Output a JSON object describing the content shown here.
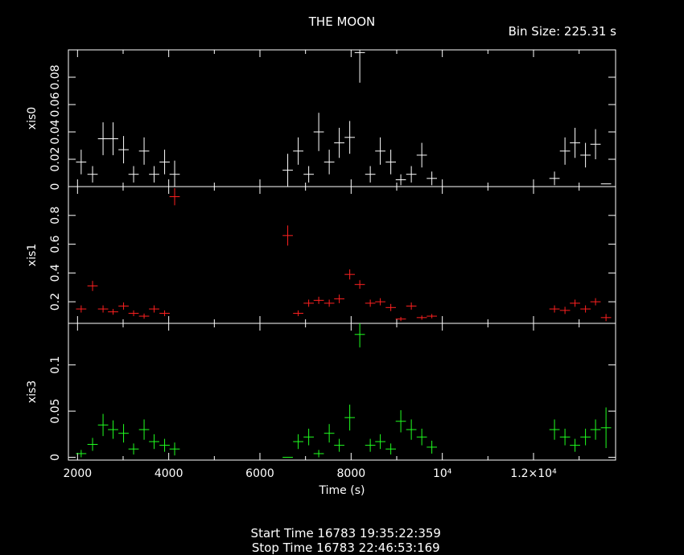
{
  "header": {
    "title": "THE MOON",
    "bin_size": "Bin Size: 225.31 s"
  },
  "footer": {
    "start": "Start Time 16783 19:35:22:359",
    "stop": "Stop Time 16783 22:46:53:169"
  },
  "chart_data": {
    "type": "scatter",
    "xlabel": "Time (s)",
    "xlim": [
      1800,
      13800
    ],
    "x_ticks": [
      {
        "value": 2000,
        "label": "2000"
      },
      {
        "value": 4000,
        "label": "4000"
      },
      {
        "value": 6000,
        "label": "6000"
      },
      {
        "value": 8000,
        "label": "8000"
      },
      {
        "value": 10000,
        "label": "10⁴"
      },
      {
        "value": 12000,
        "label": "1.2×10⁴"
      }
    ],
    "x_error": 112.65,
    "panels": [
      {
        "ylabel": "xis0",
        "color": "#ffffff",
        "ylim": [
          0,
          0.1
        ],
        "y_ticks": [
          {
            "value": 0,
            "label": "0"
          },
          {
            "value": 0.02,
            "label": "0.02"
          },
          {
            "value": 0.04,
            "label": "0.04"
          },
          {
            "value": 0.06,
            "label": "0.06"
          },
          {
            "value": 0.08,
            "label": "0.08"
          }
        ],
        "points": [
          [
            2080,
            0.018,
            0.009
          ],
          [
            2330,
            0.009,
            0.006
          ],
          [
            2560,
            0.035,
            0.012
          ],
          [
            2780,
            0.035,
            0.012
          ],
          [
            3010,
            0.027,
            0.01
          ],
          [
            3230,
            0.009,
            0.006
          ],
          [
            3460,
            0.026,
            0.01
          ],
          [
            3680,
            0.009,
            0.006
          ],
          [
            3910,
            0.018,
            0.009
          ],
          [
            4130,
            0.009,
            0.01
          ],
          [
            6610,
            0.012,
            0.012
          ],
          [
            6840,
            0.026,
            0.01
          ],
          [
            7070,
            0.009,
            0.006
          ],
          [
            7290,
            0.04,
            0.014
          ],
          [
            7520,
            0.018,
            0.009
          ],
          [
            7740,
            0.032,
            0.011
          ],
          [
            7970,
            0.036,
            0.012
          ],
          [
            8190,
            0.098,
            0.022
          ],
          [
            8420,
            0.009,
            0.006
          ],
          [
            8640,
            0.026,
            0.01
          ],
          [
            8870,
            0.018,
            0.009
          ],
          [
            9090,
            0.005,
            0.004
          ],
          [
            9320,
            0.009,
            0.006
          ],
          [
            9550,
            0.023,
            0.009
          ],
          [
            9770,
            0.006,
            0.005
          ],
          [
            12460,
            0.006,
            0.005
          ],
          [
            12690,
            0.026,
            0.01
          ],
          [
            12910,
            0.032,
            0.011
          ],
          [
            13140,
            0.023,
            0.009
          ],
          [
            13360,
            0.031,
            0.011
          ],
          [
            13590,
            0.002,
            0.0
          ]
        ]
      },
      {
        "ylabel": "xis1",
        "color": "#ff2020",
        "ylim": [
          0.05,
          1.0
        ],
        "y_ticks": [
          {
            "value": 0.2,
            "label": "0.2"
          },
          {
            "value": 0.4,
            "label": "0.4"
          },
          {
            "value": 0.6,
            "label": "0.6"
          },
          {
            "value": 0.8,
            "label": "0.8"
          }
        ],
        "points": [
          [
            2080,
            0.15,
            0.025
          ],
          [
            2330,
            0.31,
            0.035
          ],
          [
            2560,
            0.15,
            0.025
          ],
          [
            2780,
            0.13,
            0.02
          ],
          [
            3010,
            0.17,
            0.025
          ],
          [
            3230,
            0.12,
            0.02
          ],
          [
            3460,
            0.1,
            0.018
          ],
          [
            3680,
            0.15,
            0.025
          ],
          [
            3910,
            0.12,
            0.02
          ],
          [
            4130,
            0.93,
            0.06
          ],
          [
            6610,
            0.66,
            0.07
          ],
          [
            6840,
            0.12,
            0.02
          ],
          [
            7070,
            0.19,
            0.025
          ],
          [
            7290,
            0.21,
            0.025
          ],
          [
            7520,
            0.19,
            0.025
          ],
          [
            7740,
            0.22,
            0.03
          ],
          [
            7970,
            0.39,
            0.035
          ],
          [
            8190,
            0.32,
            0.03
          ],
          [
            8420,
            0.19,
            0.025
          ],
          [
            8640,
            0.2,
            0.025
          ],
          [
            8870,
            0.16,
            0.025
          ],
          [
            9090,
            0.08,
            0.015
          ],
          [
            9320,
            0.17,
            0.025
          ],
          [
            9550,
            0.09,
            0.015
          ],
          [
            9770,
            0.1,
            0.015
          ],
          [
            12460,
            0.15,
            0.025
          ],
          [
            12690,
            0.14,
            0.025
          ],
          [
            12910,
            0.19,
            0.025
          ],
          [
            13140,
            0.15,
            0.025
          ],
          [
            13360,
            0.2,
            0.025
          ],
          [
            13590,
            0.09,
            0.025
          ]
        ]
      },
      {
        "ylabel": "xis3",
        "color": "#20ff20",
        "ylim": [
          -0.003,
          0.145
        ],
        "y_ticks": [
          {
            "value": 0,
            "label": "0"
          },
          {
            "value": 0.05,
            "label": "0.05"
          },
          {
            "value": 0.1,
            "label": "0.1"
          }
        ],
        "points": [
          [
            2080,
            0.004,
            0.004
          ],
          [
            2330,
            0.014,
            0.007
          ],
          [
            2560,
            0.035,
            0.012
          ],
          [
            2780,
            0.03,
            0.01
          ],
          [
            3010,
            0.026,
            0.01
          ],
          [
            3230,
            0.009,
            0.006
          ],
          [
            3460,
            0.03,
            0.011
          ],
          [
            3680,
            0.017,
            0.008
          ],
          [
            3910,
            0.013,
            0.007
          ],
          [
            4130,
            0.009,
            0.007
          ],
          [
            6610,
            0.0,
            0.0
          ],
          [
            6840,
            0.017,
            0.008
          ],
          [
            7070,
            0.022,
            0.009
          ],
          [
            7290,
            0.004,
            0.004
          ],
          [
            7520,
            0.026,
            0.01
          ],
          [
            7740,
            0.013,
            0.007
          ],
          [
            7970,
            0.043,
            0.014
          ],
          [
            8190,
            0.133,
            0.014
          ],
          [
            8420,
            0.013,
            0.007
          ],
          [
            8640,
            0.017,
            0.008
          ],
          [
            8870,
            0.009,
            0.006
          ],
          [
            9090,
            0.039,
            0.012
          ],
          [
            9320,
            0.03,
            0.011
          ],
          [
            9550,
            0.022,
            0.009
          ],
          [
            9770,
            0.011,
            0.007
          ],
          [
            12460,
            0.03,
            0.011
          ],
          [
            12690,
            0.022,
            0.009
          ],
          [
            12910,
            0.013,
            0.007
          ],
          [
            13140,
            0.022,
            0.009
          ],
          [
            13360,
            0.03,
            0.011
          ],
          [
            13590,
            0.032,
            0.022
          ]
        ]
      }
    ]
  }
}
